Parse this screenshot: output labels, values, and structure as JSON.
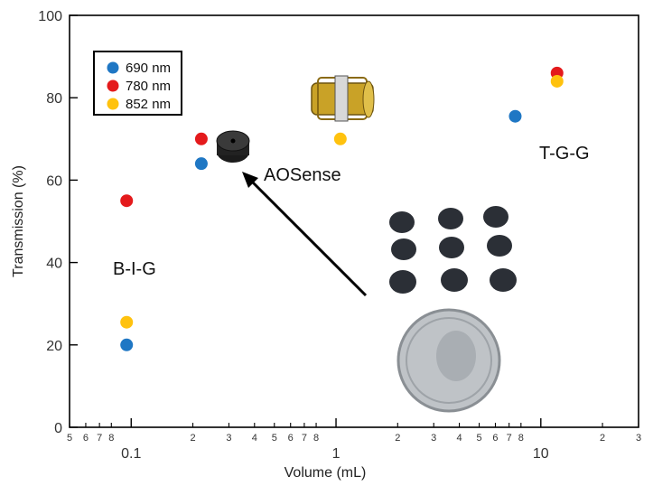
{
  "chart_data": {
    "type": "scatter",
    "xlabel": "Volume (mL)",
    "ylabel": "Transmission (%)",
    "x_scale": "log",
    "xlim": [
      0.05,
      30
    ],
    "ylim": [
      0,
      100
    ],
    "y_ticks": [
      0,
      20,
      40,
      60,
      80,
      100
    ],
    "x_major_ticks": [
      0.1,
      1,
      10
    ],
    "x_major_tick_labels": [
      "0.1",
      "1",
      "10"
    ],
    "x_minor_ticks": [
      0.05,
      0.06,
      0.07,
      0.08,
      0.2,
      0.3,
      0.4,
      0.5,
      0.6,
      0.7,
      0.8,
      2,
      3,
      4,
      5,
      6,
      7,
      8,
      20,
      30
    ],
    "x_minor_tick_labels": [
      "5",
      "6",
      "7",
      "8",
      "2",
      "3",
      "4",
      "5",
      "6",
      "7",
      "8",
      "2",
      "3",
      "4",
      "5",
      "6",
      "7",
      "8",
      "2",
      "3"
    ],
    "grid": false,
    "legend_position": "top-left",
    "series": [
      {
        "name": "690 nm",
        "color": "#1f77c4",
        "points": [
          {
            "x": 0.095,
            "y": 20
          },
          {
            "x": 0.22,
            "y": 64
          },
          {
            "x": 7.5,
            "y": 75.5
          }
        ]
      },
      {
        "name": "780 nm",
        "color": "#e41a1c",
        "points": [
          {
            "x": 0.095,
            "y": 55
          },
          {
            "x": 0.22,
            "y": 70
          },
          {
            "x": 12,
            "y": 86
          }
        ]
      },
      {
        "name": "852 nm",
        "color": "#ffc20e",
        "points": [
          {
            "x": 0.095,
            "y": 25.5
          },
          {
            "x": 1.05,
            "y": 70
          },
          {
            "x": 12,
            "y": 84
          }
        ]
      }
    ],
    "annotations": [
      {
        "text": "B-I-G",
        "x": 0.1,
        "y": 37
      },
      {
        "text": "AOSense",
        "x": 1.2,
        "y": 60
      },
      {
        "text": "T-G-G",
        "x": 11,
        "y": 67
      }
    ]
  }
}
